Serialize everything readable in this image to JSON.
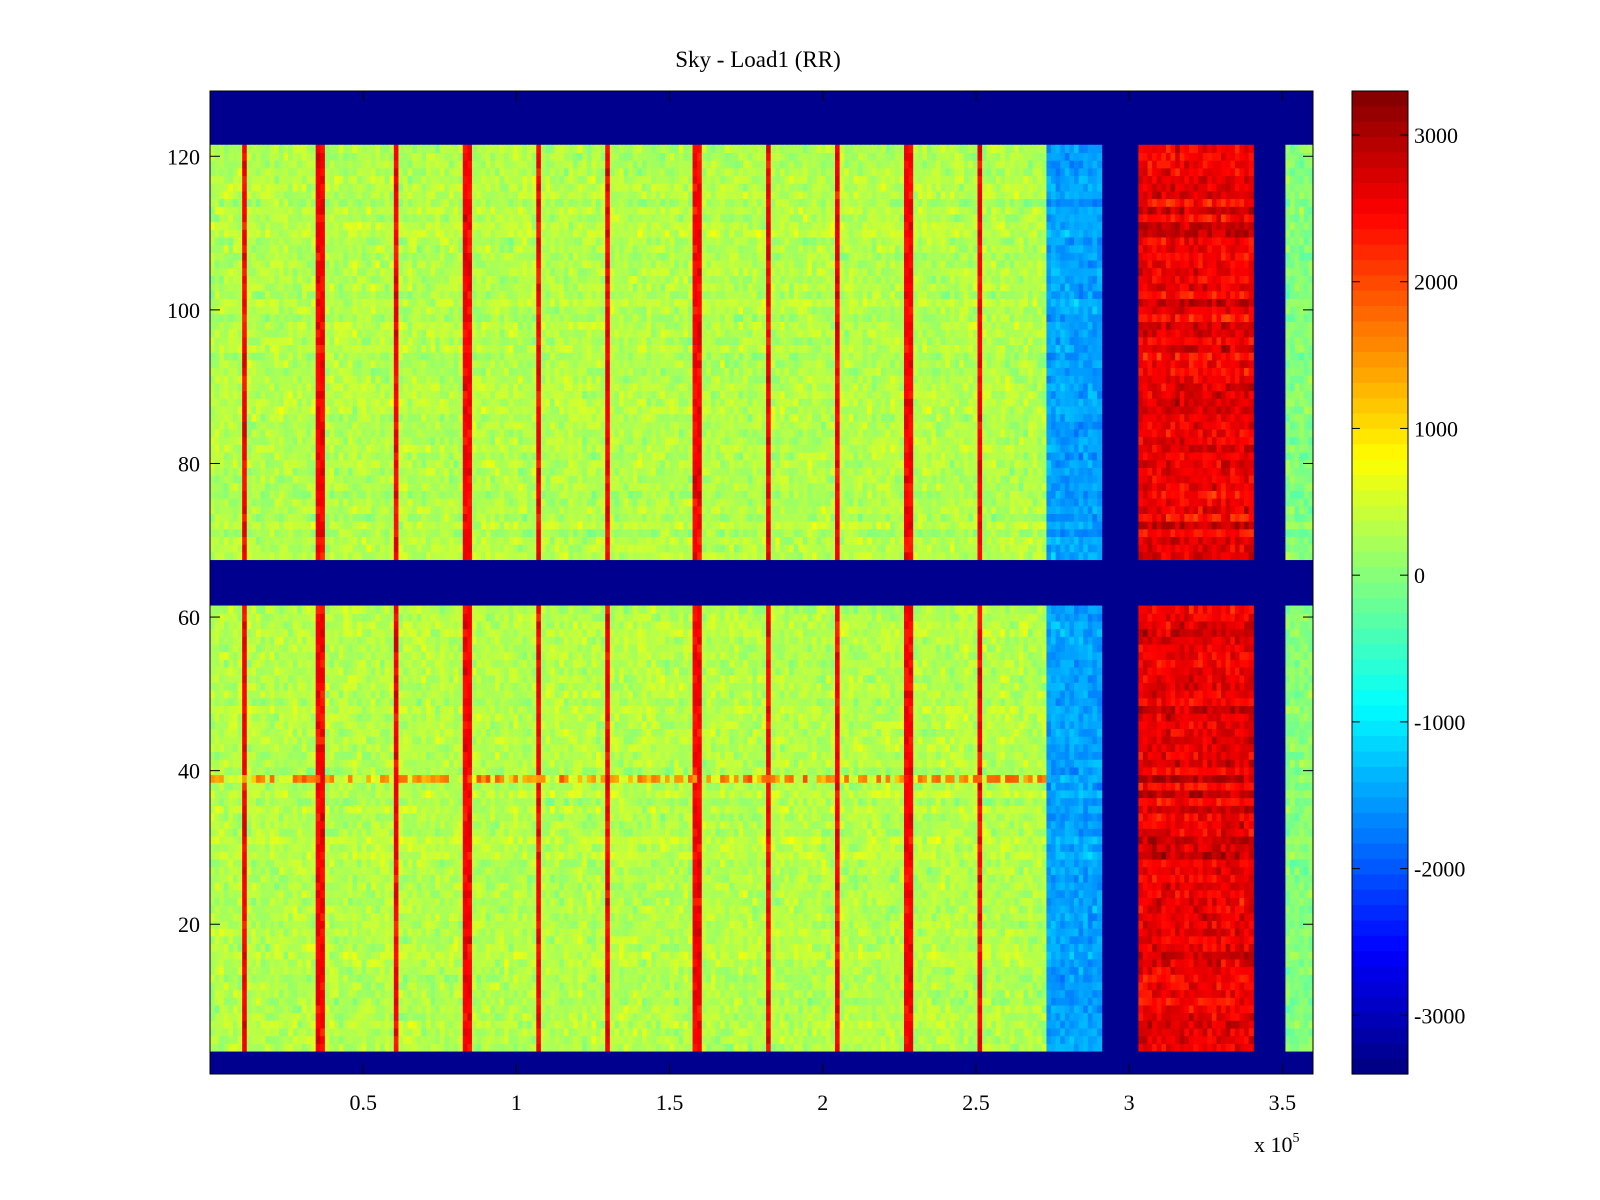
{
  "chart_data": {
    "type": "heatmap",
    "title": "Sky - Load1 (RR)",
    "xlabel": "",
    "ylabel": "",
    "xlim": [
      0,
      360000
    ],
    "ylim": [
      1,
      128
    ],
    "x_ticks": [
      50000,
      100000,
      150000,
      200000,
      250000,
      300000,
      350000
    ],
    "x_tick_labels": [
      "0.5",
      "1",
      "1.5",
      "2",
      "2.5",
      "3",
      "3.5"
    ],
    "x_exponent_label": "x 10",
    "x_exponent_power": "5",
    "y_ticks": [
      20,
      40,
      60,
      80,
      100,
      120
    ],
    "y_tick_labels": [
      "20",
      "40",
      "60",
      "80",
      "100",
      "120"
    ],
    "colorbar": {
      "colormap": "jet",
      "clim": [
        -3400,
        3300
      ],
      "ticks": [
        -3000,
        -2000,
        -1000,
        0,
        1000,
        2000,
        3000
      ],
      "tick_labels": [
        "-3000",
        "-2000",
        "-1000",
        "0",
        "1000",
        "2000",
        "3000"
      ]
    },
    "masked_regions": [
      {
        "label": "channels 122-128",
        "axis": "y",
        "from": 121.5,
        "to": 128.5
      },
      {
        "label": "channels 62-67",
        "axis": "y",
        "from": 61.5,
        "to": 67.5
      },
      {
        "label": "channels 1-3",
        "axis": "y",
        "from": 0.5,
        "to": 3.5
      },
      {
        "label": "x 291000-303000",
        "axis": "x",
        "from": 291000,
        "to": 303000
      },
      {
        "label": "x 341000-351000",
        "axis": "x",
        "from": 341000,
        "to": 351000
      }
    ],
    "value_regions": [
      {
        "x_range": [
          0,
          273000
        ],
        "typical_value": 300,
        "description": "background, green-yellow"
      },
      {
        "x_range": [
          273000,
          291000
        ],
        "typical_value": -1500,
        "description": "cyan-blue band"
      },
      {
        "x_range": [
          303000,
          341000
        ],
        "typical_value": 2600,
        "description": "red-orange band"
      },
      {
        "x_range": [
          351000,
          360000
        ],
        "typical_value": 0,
        "description": "green strip"
      }
    ],
    "spike_columns_x": [
      11000,
      36000,
      61000,
      84000,
      107000,
      130000,
      159000,
      182000,
      205000,
      228000,
      251000
    ],
    "spike_value": 2500,
    "hot_channel_y": 39,
    "hot_channel_value": 1600
  }
}
